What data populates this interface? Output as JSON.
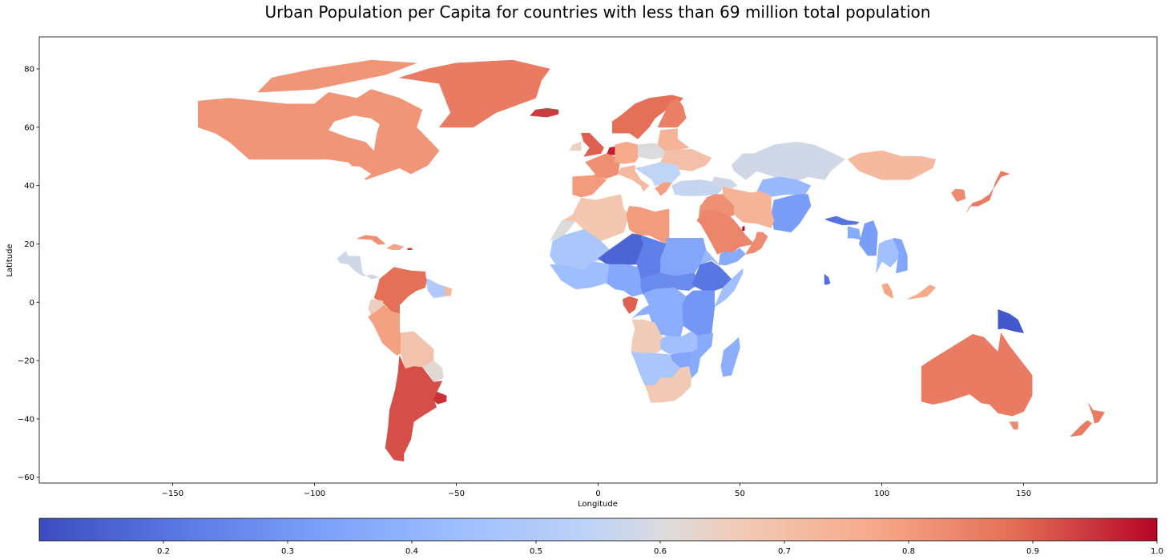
{
  "chart_data": {
    "type": "choropleth",
    "title": "Urban Population per Capita for countries with less than 69 million total population",
    "xlabel": "Longitude",
    "ylabel": "Latitude",
    "xlim": [
      -197,
      197
    ],
    "ylim": [
      -62,
      91
    ],
    "xticks": [
      -150,
      -100,
      -50,
      0,
      50,
      100,
      150
    ],
    "yticks": [
      -60,
      -40,
      -20,
      0,
      20,
      40,
      60,
      80
    ],
    "xtick_labels": [
      "−150",
      "−100",
      "−50",
      "0",
      "50",
      "100",
      "150"
    ],
    "ytick_labels": [
      "−60",
      "−40",
      "−20",
      "0",
      "20",
      "40",
      "60",
      "80"
    ],
    "colormap": "coolwarm",
    "colorbar": {
      "range": [
        0.1,
        1.0
      ],
      "ticks": [
        0.2,
        0.3,
        0.4,
        0.5,
        0.6,
        0.7,
        0.8,
        0.9,
        1.0
      ],
      "tick_labels": [
        "0.2",
        "0.3",
        "0.4",
        "0.5",
        "0.6",
        "0.7",
        "0.8",
        "0.9",
        "1.0"
      ],
      "orientation": "horizontal",
      "placement": "bottom"
    },
    "grid": false,
    "colors": {
      "low": "#3b4cc0",
      "mid": "#dddcdc",
      "high": "#b40426"
    }
  }
}
